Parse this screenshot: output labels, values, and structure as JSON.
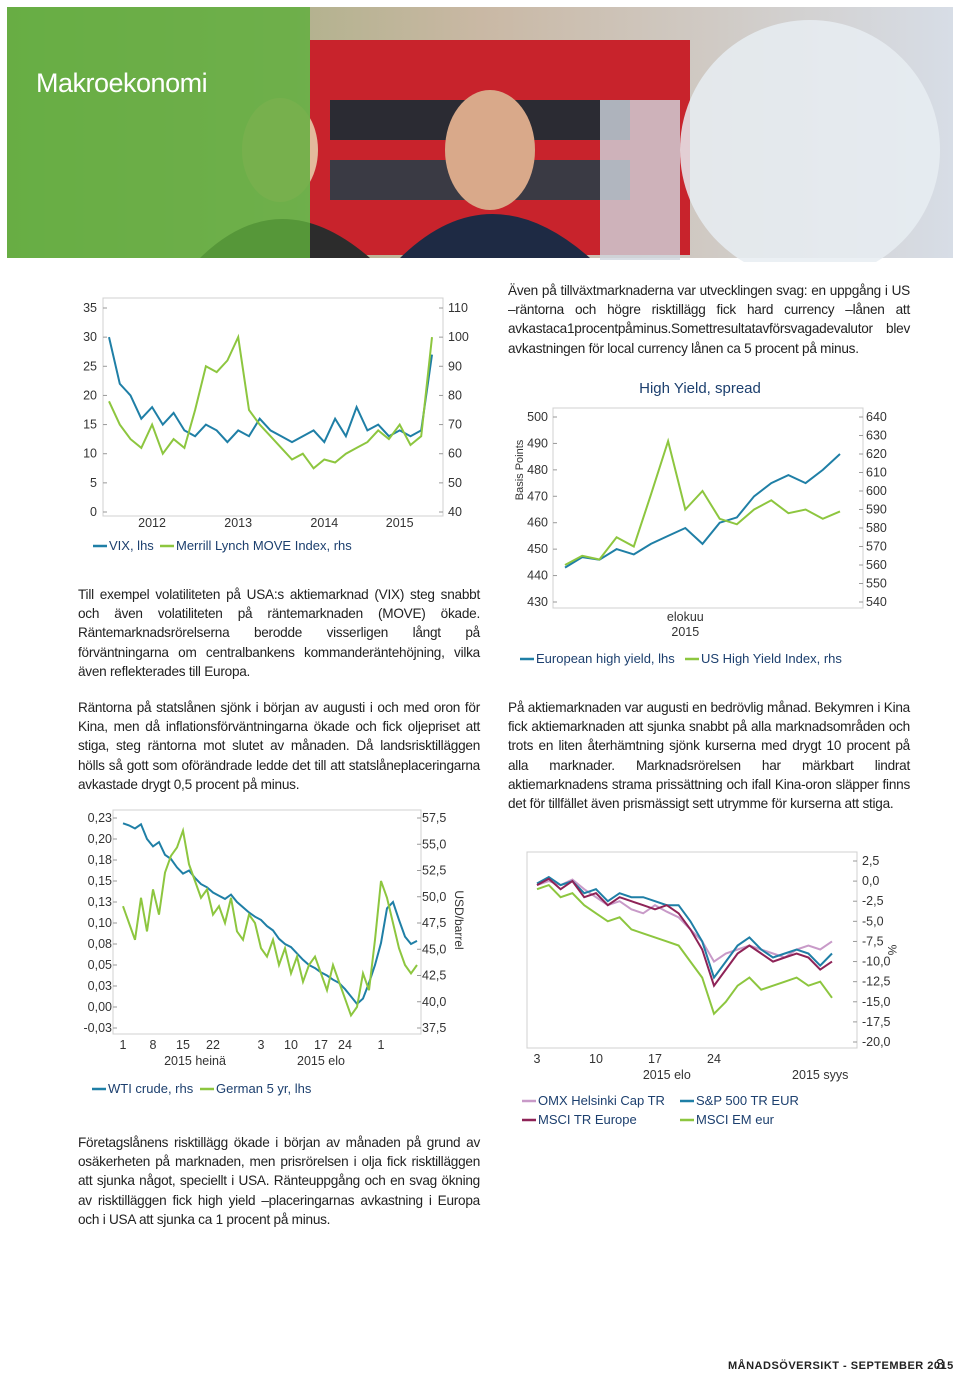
{
  "header": {
    "title": "Makroekonomi"
  },
  "paragraphs": [
    "Även på tillväxtmarknaderna var utvecklingen svag: en uppgång i US –räntorna och högre risktillägg fick hard currency –lånen att avkastaca1procentpåminus.Somettresultatavförsvagadevalutor blev avkastningen för local currency lånen ca 5 procent på minus.",
    "Till exempel volatiliteten på USA:s aktiemarknad (VIX) steg snabbt och även volatiliteten på räntemarknaden (MOVE) ökade. Räntemarknadsrörelserna berodde visserligen långt på förväntningarna om centralbankens kommanderäntehöjning, vilka även reflekterades till Europa.",
    "Räntorna på statslånen sjönk i början av augusti i och med oron för Kina, men då inflationsförväntningarna ökade och fick oljepriset att stiga, steg räntorna mot slutet av månaden. Då landsrisktilläggen hölls så gott som oförändrade ledde det till att statslåneplaceringarna avkastade drygt 0,5 procent på minus.",
    "På aktiemarknaden var augusti en bedrövlig månad. Bekymren i Kina fick aktiemarknaden att sjunka snabbt på alla marknadsområden och trots en liten återhämtning sjönk kurserna med drygt 10 procent på alla marknader. Marknadsrörelsen har märkbart lindrat aktiemarknadens strama prissättning och ifall Kina-oron släpper finns det för tillfället även prismässigt sett utrymme för kurserna att stiga.",
    "Företagslånens risktillägg ökade i början av månaden på grund av osäkerheten på marknaden, men prisrörelsen i olja fick risktilläggen att sjunka något, speciellt i USA. Ränteuppgång och en svag ökning av risktilläggen fick high yield –placeringarnas avkastning i Europa och i USA att sjunka ca 1 procent på minus."
  ],
  "chart_data": [
    {
      "type": "line",
      "categories": [
        null,
        null,
        null,
        null,
        "2012",
        null,
        null,
        null,
        null,
        null,
        null,
        null,
        "2013",
        null,
        null,
        null,
        null,
        null,
        null,
        null,
        "2014",
        null,
        null,
        null,
        null,
        null,
        null,
        "2015",
        null,
        null,
        null
      ],
      "series": [
        {
          "name": "VIX, lhs",
          "color": "#1f7fa6",
          "axis": "y",
          "values": [
            30,
            22,
            20,
            16,
            18,
            15,
            17,
            14,
            13,
            15,
            14,
            12,
            14,
            13,
            16,
            14,
            13,
            12,
            13,
            14,
            12,
            16,
            13,
            18,
            14,
            15,
            13,
            14,
            13,
            14,
            27
          ]
        },
        {
          "name": "Merrill Lynch MOVE Index, rhs",
          "color": "#8dc63f",
          "axis": "y2",
          "values": [
            78,
            70,
            65,
            62,
            70,
            60,
            65,
            62,
            75,
            90,
            88,
            92,
            100,
            75,
            70,
            66,
            62,
            58,
            60,
            55,
            58,
            57,
            60,
            62,
            64,
            68,
            65,
            70,
            63,
            66,
            100
          ]
        }
      ],
      "ylim": [
        0,
        35
      ],
      "yticks": [
        0,
        5,
        10,
        15,
        20,
        25,
        30,
        35
      ],
      "y2lim": [
        40,
        110
      ],
      "y2ticks": [
        40,
        50,
        60,
        70,
        80,
        90,
        100,
        110
      ]
    },
    {
      "type": "line",
      "title": "High Yield, spread",
      "ylabel": "Basis Points",
      "categories": [
        null,
        null,
        null,
        null,
        null,
        null,
        null,
        "elokuu 2015",
        null,
        null,
        null,
        null,
        null,
        null,
        null,
        null,
        null
      ],
      "series": [
        {
          "name": "European high yield, lhs",
          "color": "#1f7fa6",
          "axis": "y",
          "values": [
            443,
            447,
            446,
            450,
            448,
            452,
            455,
            458,
            452,
            460,
            462,
            470,
            475,
            478,
            475,
            480,
            486
          ]
        },
        {
          "name": "US High Yield Index, rhs",
          "color": "#8dc63f",
          "axis": "y2",
          "values": [
            560,
            565,
            563,
            575,
            570,
            598,
            627,
            590,
            600,
            585,
            582,
            590,
            595,
            588,
            590,
            585,
            589
          ]
        }
      ],
      "ylim": [
        430,
        500
      ],
      "yticks": [
        430,
        440,
        450,
        460,
        470,
        480,
        490,
        500
      ],
      "y2lim": [
        540,
        640
      ],
      "y2ticks": [
        540,
        550,
        560,
        570,
        580,
        590,
        600,
        610,
        620,
        630,
        640
      ]
    },
    {
      "type": "line",
      "y2label": "USD/barrel",
      "categories": [
        "1",
        null,
        null,
        null,
        null,
        "8",
        null,
        null,
        null,
        null,
        "15",
        null,
        null,
        null,
        null,
        "22",
        null,
        null,
        null,
        null,
        null,
        null,
        null,
        "3",
        null,
        null,
        null,
        null,
        "10",
        null,
        null,
        null,
        null,
        "17",
        null,
        null,
        null,
        "24",
        null,
        null,
        null,
        null,
        null,
        "1",
        null,
        null,
        null,
        null,
        null,
        null
      ],
      "category_groups": [
        null,
        null,
        null,
        null,
        null,
        null,
        null,
        null,
        null,
        null,
        null,
        null,
        "2015 heinä",
        null,
        null,
        null,
        null,
        null,
        null,
        null,
        null,
        null,
        null,
        null,
        null,
        null,
        null,
        null,
        null,
        null,
        null,
        null,
        null,
        "2015 elo",
        null,
        null,
        null,
        null,
        null,
        null,
        null,
        null,
        null,
        null,
        null,
        null,
        null,
        null,
        null,
        null
      ],
      "series": [
        {
          "name": "WTI crude, rhs",
          "color": "#1f7fa6",
          "axis": "y2",
          "values": [
            57.0,
            56.8,
            56.5,
            56.9,
            55.5,
            54.8,
            55.2,
            54.0,
            53.6,
            52.8,
            52.2,
            52.5,
            51.8,
            51.2,
            50.9,
            50.4,
            50.1,
            49.8,
            50.2,
            49.5,
            49.0,
            48.5,
            48.1,
            47.8,
            47.2,
            46.8,
            46.0,
            45.5,
            45.2,
            44.6,
            44.0,
            43.5,
            43.2,
            42.8,
            42.5,
            42.1,
            41.8,
            41.2,
            40.5,
            39.8,
            40.3,
            41.8,
            43.5,
            45.6,
            48.9,
            49.5,
            47.8,
            46.2,
            45.5,
            45.8
          ]
        },
        {
          "name": "German 5 yr, lhs",
          "color": "#8dc63f",
          "axis": "y",
          "values": [
            0.12,
            0.1,
            0.08,
            0.13,
            0.09,
            0.14,
            0.11,
            0.16,
            0.18,
            0.19,
            0.21,
            0.17,
            0.15,
            0.13,
            0.14,
            0.11,
            0.12,
            0.1,
            0.13,
            0.09,
            0.08,
            0.11,
            0.1,
            0.07,
            0.06,
            0.08,
            0.05,
            0.07,
            0.04,
            0.06,
            0.03,
            0.05,
            0.06,
            0.04,
            0.02,
            0.05,
            0.03,
            0.01,
            -0.01,
            0.0,
            0.04,
            0.02,
            0.08,
            0.15,
            0.13,
            0.1,
            0.07,
            0.05,
            0.04,
            0.05
          ]
        }
      ],
      "ylim": [
        -0.025,
        0.225
      ],
      "yticks": [
        {
          "value": -0.025,
          "label": "-0,03"
        },
        {
          "value": 0,
          "label": "0,00"
        },
        {
          "value": 0.025,
          "label": "0,03"
        },
        {
          "value": 0.05,
          "label": "0,05"
        },
        {
          "value": 0.075,
          "label": "0,08"
        },
        {
          "value": 0.1,
          "label": "0,10"
        },
        {
          "value": 0.125,
          "label": "0,13"
        },
        {
          "value": 0.15,
          "label": "0,15"
        },
        {
          "value": 0.175,
          "label": "0,18"
        },
        {
          "value": 0.2,
          "label": "0,20"
        },
        {
          "value": 0.225,
          "label": "0,23"
        }
      ],
      "y2lim": [
        37.5,
        57.5
      ],
      "y2ticks": [
        {
          "value": 37.5,
          "label": "37,5"
        },
        {
          "value": 40,
          "label": "40,0"
        },
        {
          "value": 42.5,
          "label": "42,5"
        },
        {
          "value": 45,
          "label": "45,0"
        },
        {
          "value": 47.5,
          "label": "47,5"
        },
        {
          "value": 50,
          "label": "50,0"
        },
        {
          "value": 52.5,
          "label": "52,5"
        },
        {
          "value": 55,
          "label": "55,0"
        },
        {
          "value": 57.5,
          "label": "57,5"
        }
      ]
    },
    {
      "type": "line",
      "y2label": "%",
      "categories": [
        "3",
        null,
        null,
        null,
        null,
        "10",
        null,
        null,
        null,
        null,
        "17",
        null,
        null,
        null,
        null,
        "24",
        null,
        null,
        null,
        null,
        null,
        null,
        null,
        null,
        null,
        null
      ],
      "category_groups": [
        null,
        null,
        null,
        null,
        null,
        null,
        null,
        null,
        null,
        null,
        null,
        "2015 elo",
        null,
        null,
        null,
        null,
        null,
        null,
        null,
        null,
        null,
        null,
        null,
        null,
        "2015 syys",
        null
      ],
      "series": [
        {
          "name": "OMX Helsinki Cap TR",
          "color": "#c89ac8",
          "axis": "y2",
          "values": [
            -0.5,
            0,
            -0.5,
            0.2,
            -1,
            -2,
            -3,
            -2.5,
            -3.5,
            -4,
            -3,
            -3.8,
            -4.5,
            -6,
            -7.5,
            -10,
            -9,
            -8.5,
            -8,
            -8.5,
            -9,
            -9.5,
            -8.5,
            -8,
            -8.5,
            -7.5
          ]
        },
        {
          "name": "S&P 500 TR EUR",
          "color": "#1f7fa6",
          "axis": "y2",
          "values": [
            -0.3,
            0.5,
            -0.5,
            0,
            -1.5,
            -1,
            -2.5,
            -1.5,
            -2,
            -2,
            -2.5,
            -3,
            -3,
            -5,
            -7.5,
            -12,
            -10,
            -8,
            -7,
            -8.5,
            -9.5,
            -9,
            -8.5,
            -9,
            -10.5,
            -9
          ]
        },
        {
          "name": "MSCI TR Europe",
          "color": "#8e2357",
          "axis": "y2",
          "values": [
            -0.5,
            0.3,
            -1,
            0,
            -2,
            -1.5,
            -3,
            -2,
            -2.5,
            -3,
            -3.5,
            -3,
            -4,
            -6,
            -8.5,
            -13,
            -11,
            -9,
            -8,
            -9,
            -10,
            -9.5,
            -9,
            -9.5,
            -11,
            -10
          ]
        },
        {
          "name": "MSCI EM eur",
          "color": "#8dc63f",
          "axis": "y2",
          "values": [
            -1,
            -0.5,
            -2,
            -1.5,
            -3,
            -4,
            -5,
            -4.5,
            -6,
            -6.5,
            -7,
            -7.5,
            -8,
            -10,
            -12,
            -16.5,
            -15,
            -13,
            -12,
            -13.5,
            -13,
            -12.5,
            -12,
            -13,
            -12.5,
            -14.5
          ]
        }
      ],
      "y2lim": [
        -20,
        2.5
      ],
      "y2ticks": [
        {
          "value": -20,
          "label": "-20,0"
        },
        {
          "value": -17.5,
          "label": "-17,5"
        },
        {
          "value": -15,
          "label": "-15,0"
        },
        {
          "value": -12.5,
          "label": "-12,5"
        },
        {
          "value": -10,
          "label": "-10,0"
        },
        {
          "value": -7.5,
          "label": "-7,5"
        },
        {
          "value": -5,
          "label": "-5,0"
        },
        {
          "value": -2.5,
          "label": "-2,5"
        },
        {
          "value": 0,
          "label": "0,0"
        },
        {
          "value": 2.5,
          "label": "2,5"
        }
      ]
    }
  ],
  "footer": {
    "publication": "MÅNADSÖVERSIKT - SEPTEMBER 2015",
    "page": "3"
  }
}
